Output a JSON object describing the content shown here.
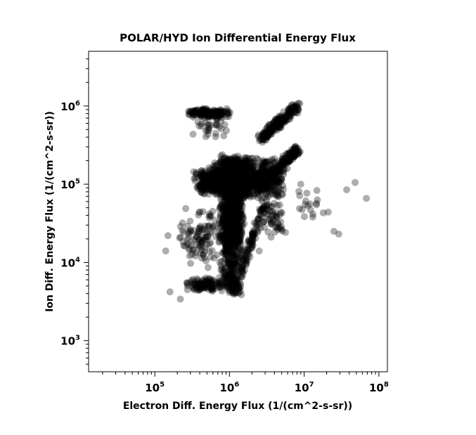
{
  "chart_data": {
    "type": "scatter",
    "title": "POLAR/HYD  Ion Differential Energy Flux",
    "xlabel": "Electron Diff. Energy Flux (1/(cm^2-s-sr))",
    "ylabel": "Ion Diff. Energy Flux (1/(cm^2-s-sr))",
    "x_scale": "log",
    "y_scale": "log",
    "xlim": [
      13000,
      130000000
    ],
    "ylim": [
      400,
      5000000
    ],
    "x_ticks": [
      {
        "base": "10",
        "exp": "5",
        "value": 100000
      },
      {
        "base": "10",
        "exp": "6",
        "value": 1000000
      },
      {
        "base": "10",
        "exp": "7",
        "value": 10000000
      },
      {
        "base": "10",
        "exp": "8",
        "value": 100000000
      }
    ],
    "y_ticks": [
      {
        "base": "10",
        "exp": "3",
        "value": 1000
      },
      {
        "base": "10",
        "exp": "4",
        "value": 10000
      },
      {
        "base": "10",
        "exp": "5",
        "value": 100000
      },
      {
        "base": "10",
        "exp": "6",
        "value": 1000000
      }
    ],
    "marker_color": "#000000",
    "marker_opacity": 0.32,
    "grid": false,
    "legend": "none",
    "series": [
      {
        "clusters": [
          {
            "x": [
              700000,
              1600000
            ],
            "y": [
              5000,
              250000
            ],
            "n": 900
          },
          {
            "x": [
              600000,
              2500000
            ],
            "y": [
              60000,
              250000
            ],
            "n": 600
          },
          {
            "x": [
              300000,
              1200000
            ],
            "y": [
              70000,
              180000
            ],
            "n": 250
          },
          {
            "x": [
              1500000,
              6000000
            ],
            "y": [
              60000,
              230000
            ],
            "n": 300
          },
          {
            "x": [
              250000,
              900000
            ],
            "y": [
              4200,
              6500
            ],
            "n": 120
          },
          {
            "x": [
              800000,
              1500000
            ],
            "y": [
              3500,
              8000
            ],
            "n": 90
          },
          {
            "x": [
              250000,
              1100000
            ],
            "y": [
              700000,
              950000
            ],
            "n": 150
          },
          {
            "x": [
              250000,
              1200000
            ],
            "y": [
              350000,
              950000
            ],
            "n": 40
          },
          {
            "x": [
              200000,
              900000
            ],
            "y": [
              8000,
              60000
            ],
            "n": 110
          },
          {
            "x": [
              2500000,
              6000000
            ],
            "y": [
              20000,
              60000
            ],
            "n": 50
          },
          {
            "x": [
              6000000,
              20000000
            ],
            "y": [
              30000,
              100000
            ],
            "n": 15
          }
        ],
        "diagonals": [
          {
            "x": [
              2600000,
              8000000
            ],
            "y": [
              380000,
              980000
            ],
            "n": 200
          },
          {
            "x": [
              2500000,
              8500000
            ],
            "y": [
              90000,
              300000
            ],
            "n": 200
          },
          {
            "x": [
              1200000,
              3000000
            ],
            "y": [
              5000,
              60000
            ],
            "n": 120
          }
        ],
        "outliers": [
          {
            "x": 15000000,
            "y": 63000
          },
          {
            "x": 21000000,
            "y": 44000
          },
          {
            "x": 25000000,
            "y": 25000
          },
          {
            "x": 29000000,
            "y": 23000
          },
          {
            "x": 37000000,
            "y": 85000
          },
          {
            "x": 48000000,
            "y": 105000
          },
          {
            "x": 68000000,
            "y": 66000
          },
          {
            "x": 18000000,
            "y": 43000
          },
          {
            "x": 13000000,
            "y": 38000
          },
          {
            "x": 140000,
            "y": 14000
          },
          {
            "x": 150000,
            "y": 22000
          },
          {
            "x": 160000,
            "y": 4200
          },
          {
            "x": 220000,
            "y": 3400
          },
          {
            "x": 2500000,
            "y": 14000
          },
          {
            "x": 3600000,
            "y": 21000
          },
          {
            "x": 4800000,
            "y": 27000
          },
          {
            "x": 5200000,
            "y": 230000
          },
          {
            "x": 2900000,
            "y": 190000
          },
          {
            "x": 7000000,
            "y": 250000
          },
          {
            "x": 9000000,
            "y": 100000
          }
        ]
      }
    ]
  }
}
